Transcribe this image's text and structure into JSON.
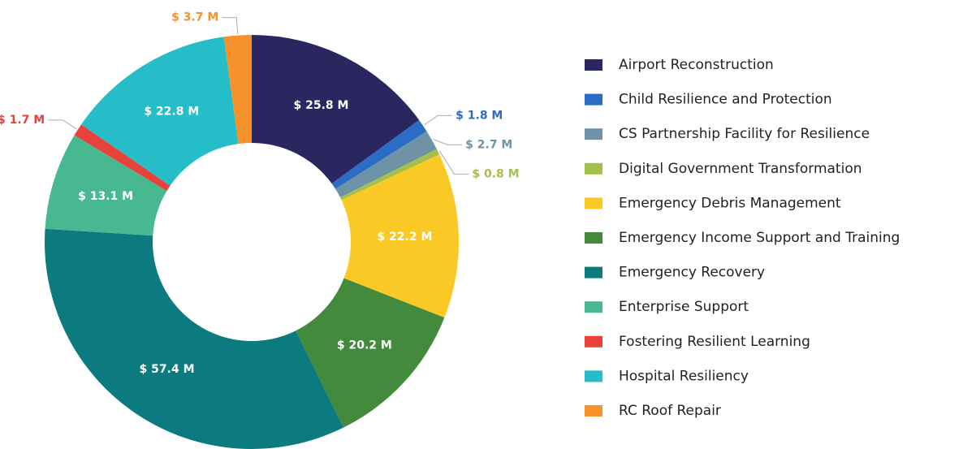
{
  "chart_data": {
    "type": "donut",
    "categories": [
      "Airport Reconstruction",
      "Child Resilience and Protection",
      "CS Partnership Facility for Resilience",
      "Digital Government Transformation",
      "Emergency Debris Management",
      "Emergency Income Support and Training",
      "Emergency Recovery",
      "Enterprise Support",
      "Fostering Resilient Learning",
      "Hospital Resiliency",
      "RC Roof Repair"
    ],
    "values": [
      25.8,
      1.8,
      2.7,
      0.8,
      22.2,
      20.2,
      57.4,
      13.1,
      1.7,
      22.8,
      3.7
    ],
    "value_labels": [
      "$ 25.8 M",
      "$ 1.8 M",
      "$ 2.7 M",
      "$ 0.8 M",
      "$ 22.2 M",
      "$ 20.2 M",
      "$ 57.4 M",
      "$ 13.1 M",
      "$ 1.7 M",
      "$ 22.8 M",
      "$ 3.7 M"
    ],
    "colors": [
      "#2a2660",
      "#2b6cc4",
      "#6f93a6",
      "#a3c14a",
      "#fbc925",
      "#438a3c",
      "#0b7b80",
      "#47b88f",
      "#e8433a",
      "#25bdc8",
      "#f7922a"
    ],
    "legend": "right"
  }
}
